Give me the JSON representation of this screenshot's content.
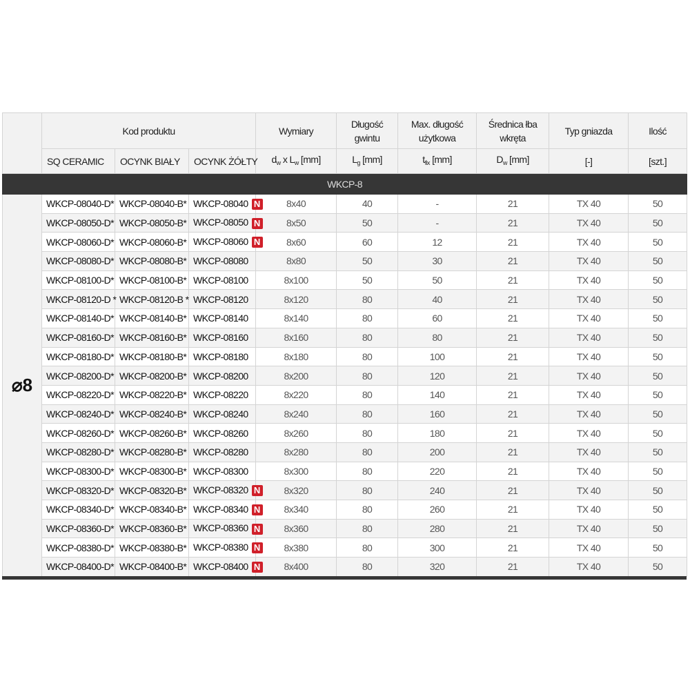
{
  "header": {
    "kod_produktu": "Kod produktu",
    "wymiary": "Wymiary",
    "dlugosc_gwintu": "Długość gwintu",
    "max_dlugosc": "Max. długość użytkowa",
    "srednica": "Średnica łba wkręta",
    "typ_gniazda": "Typ gniazda",
    "ilosc": "Ilość",
    "sq_ceramic": "SQ CERAMIC",
    "ocynk_bialy": "OCYNK BIAŁY",
    "ocynk_zolty": "OCYNK ŻÓŁTY",
    "unit_wymiary": {
      "d": "d",
      "d_sub": "w",
      "x": " x L",
      "l_sub": "w",
      "unit": " [mm]"
    },
    "unit_lg": {
      "main": "L",
      "sub": "g",
      "unit": " [mm]"
    },
    "unit_tfix": {
      "main": "t",
      "sub": "fix",
      "unit": " [mm]"
    },
    "unit_dw": {
      "main": "D",
      "sub": "w",
      "unit": " [mm]"
    },
    "unit_typ": "[-]",
    "unit_ilosc": "[szt.]"
  },
  "group": "WKCP-8",
  "diameter": "⌀8",
  "badge_label": "N",
  "badge_color": "#d0202a",
  "rows": [
    [
      "WKCP-08040-D*",
      "WKCP-08040-B*",
      "WKCP-08040",
      true,
      "8x40",
      "40",
      "-",
      "21",
      "TX 40",
      "50"
    ],
    [
      "WKCP-08050-D*",
      "WKCP-08050-B*",
      "WKCP-08050",
      true,
      "8x50",
      "50",
      "-",
      "21",
      "TX 40",
      "50"
    ],
    [
      "WKCP-08060-D*",
      "WKCP-08060-B*",
      "WKCP-08060",
      true,
      "8x60",
      "60",
      "12",
      "21",
      "TX 40",
      "50"
    ],
    [
      "WKCP-08080-D*",
      "WKCP-08080-B*",
      "WKCP-08080",
      false,
      "8x80",
      "50",
      "30",
      "21",
      "TX 40",
      "50"
    ],
    [
      "WKCP-08100-D*",
      "WKCP-08100-B*",
      "WKCP-08100",
      false,
      "8x100",
      "50",
      "50",
      "21",
      "TX 40",
      "50"
    ],
    [
      "WKCP-08120-D *",
      "WKCP-08120-B *",
      "WKCP-08120",
      false,
      "8x120",
      "80",
      "40",
      "21",
      "TX 40",
      "50"
    ],
    [
      "WKCP-08140-D*",
      "WKCP-08140-B*",
      "WKCP-08140",
      false,
      "8x140",
      "80",
      "60",
      "21",
      "TX 40",
      "50"
    ],
    [
      "WKCP-08160-D*",
      "WKCP-08160-B*",
      "WKCP-08160",
      false,
      "8x160",
      "80",
      "80",
      "21",
      "TX 40",
      "50"
    ],
    [
      "WKCP-08180-D*",
      "WKCP-08180-B*",
      "WKCP-08180",
      false,
      "8x180",
      "80",
      "100",
      "21",
      "TX 40",
      "50"
    ],
    [
      "WKCP-08200-D*",
      "WKCP-08200-B*",
      "WKCP-08200",
      false,
      "8x200",
      "80",
      "120",
      "21",
      "TX 40",
      "50"
    ],
    [
      "WKCP-08220-D*",
      "WKCP-08220-B*",
      "WKCP-08220",
      false,
      "8x220",
      "80",
      "140",
      "21",
      "TX 40",
      "50"
    ],
    [
      "WKCP-08240-D*",
      "WKCP-08240-B*",
      "WKCP-08240",
      false,
      "8x240",
      "80",
      "160",
      "21",
      "TX 40",
      "50"
    ],
    [
      "WKCP-08260-D*",
      "WKCP-08260-B*",
      "WKCP-08260",
      false,
      "8x260",
      "80",
      "180",
      "21",
      "TX 40",
      "50"
    ],
    [
      "WKCP-08280-D*",
      "WKCP-08280-B*",
      "WKCP-08280",
      false,
      "8x280",
      "80",
      "200",
      "21",
      "TX 40",
      "50"
    ],
    [
      "WKCP-08300-D*",
      "WKCP-08300-B*",
      "WKCP-08300",
      false,
      "8x300",
      "80",
      "220",
      "21",
      "TX 40",
      "50"
    ],
    [
      "WKCP-08320-D*",
      "WKCP-08320-B*",
      "WKCP-08320",
      true,
      "8x320",
      "80",
      "240",
      "21",
      "TX 40",
      "50"
    ],
    [
      "WKCP-08340-D*",
      "WKCP-08340-B*",
      "WKCP-08340",
      true,
      "8x340",
      "80",
      "260",
      "21",
      "TX 40",
      "50"
    ],
    [
      "WKCP-08360-D*",
      "WKCP-08360-B*",
      "WKCP-08360",
      true,
      "8x360",
      "80",
      "280",
      "21",
      "TX 40",
      "50"
    ],
    [
      "WKCP-08380-D*",
      "WKCP-08380-B*",
      "WKCP-08380",
      true,
      "8x380",
      "80",
      "300",
      "21",
      "TX 40",
      "50"
    ],
    [
      "WKCP-08400-D*",
      "WKCP-08400-B*",
      "WKCP-08400",
      true,
      "8x400",
      "80",
      "320",
      "21",
      "TX 40",
      "50"
    ]
  ]
}
